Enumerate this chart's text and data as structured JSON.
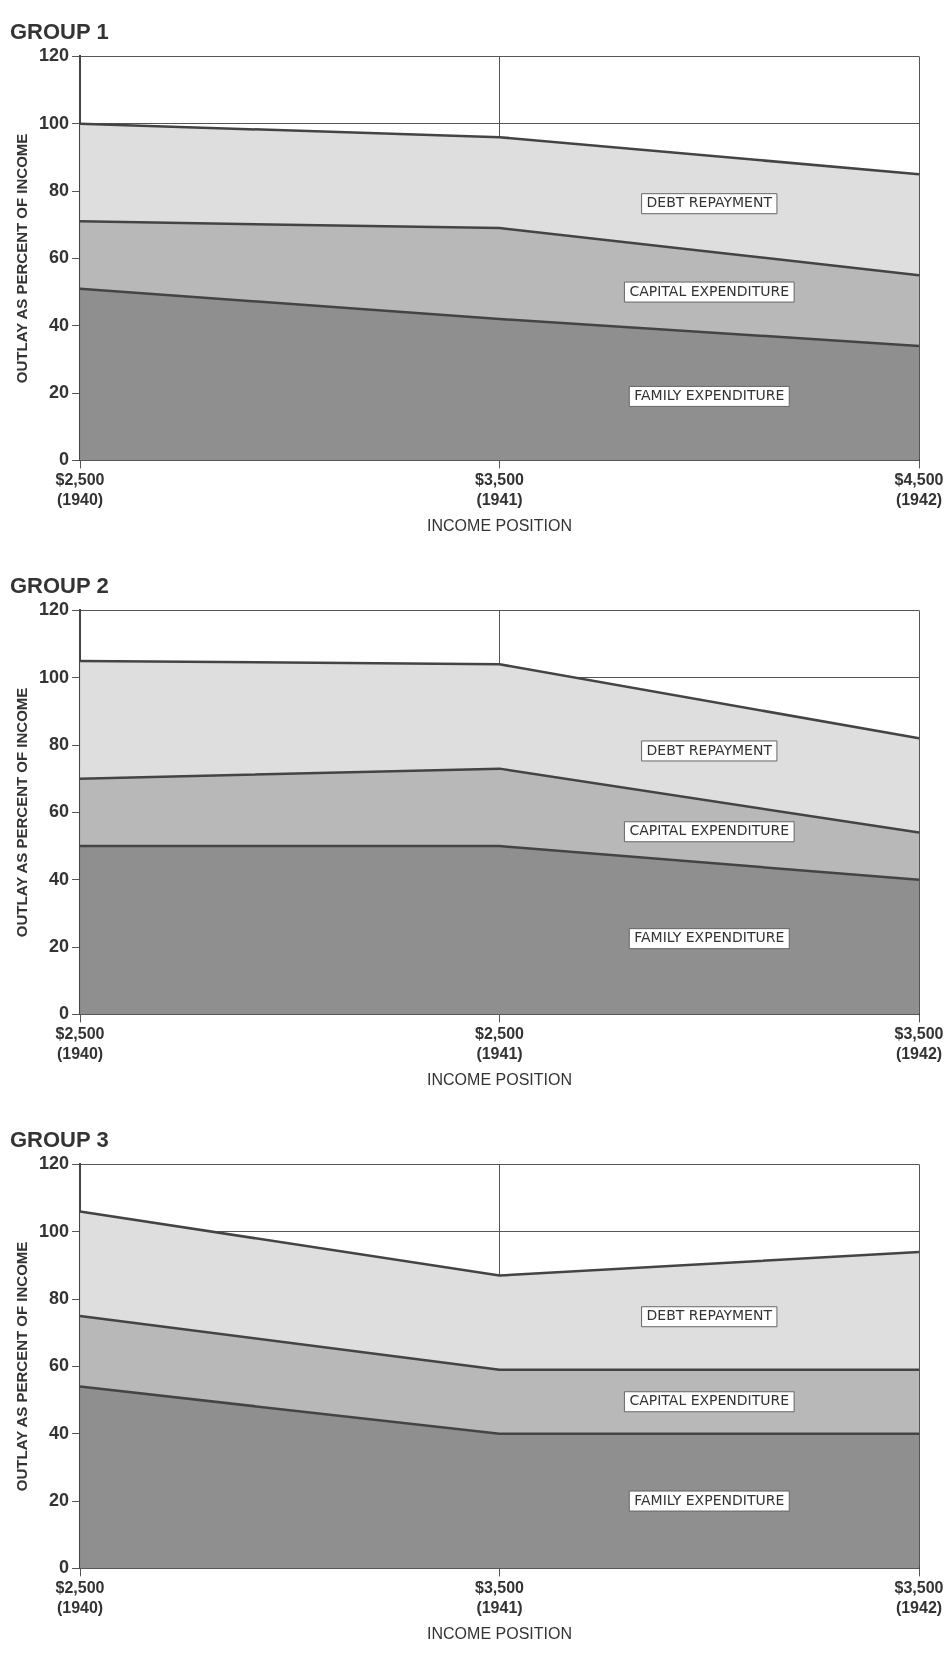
{
  "chart_data": [
    {
      "type": "area",
      "title": "GROUP 1",
      "xlabel": "INCOME POSITION",
      "ylabel": "OUTLAY AS PERCENT OF INCOME",
      "stacked": true,
      "grid": true,
      "legend": false,
      "categories": [
        "$2,500\n(1940)",
        "$3,500\n(1941)",
        "$4,500\n(1942)"
      ],
      "ylim": [
        0,
        120
      ],
      "yticks": [
        0,
        20,
        40,
        60,
        80,
        100,
        120
      ],
      "series": [
        {
          "name": "FAMILY EXPENDITURE",
          "color": "#8f8f8f",
          "values": [
            51,
            42,
            34
          ]
        },
        {
          "name": "CAPITAL EXPENDITURE",
          "color": "#b8b8b8",
          "values": [
            20,
            27,
            21
          ]
        },
        {
          "name": "DEBT REPAYMENT",
          "color": "#dedede",
          "values": [
            29,
            27,
            30
          ]
        }
      ]
    },
    {
      "type": "area",
      "title": "GROUP 2",
      "xlabel": "INCOME POSITION",
      "ylabel": "OUTLAY AS PERCENT OF INCOME",
      "stacked": true,
      "grid": true,
      "legend": false,
      "categories": [
        "$2,500\n(1940)",
        "$2,500\n(1941)",
        "$3,500\n(1942)"
      ],
      "ylim": [
        0,
        120
      ],
      "yticks": [
        0,
        20,
        40,
        60,
        80,
        100,
        120
      ],
      "series": [
        {
          "name": "FAMILY EXPENDITURE",
          "color": "#8f8f8f",
          "values": [
            50,
            50,
            40
          ]
        },
        {
          "name": "CAPITAL EXPENDITURE",
          "color": "#b8b8b8",
          "values": [
            20,
            23,
            14
          ]
        },
        {
          "name": "DEBT REPAYMENT",
          "color": "#dedede",
          "values": [
            35,
            31,
            28
          ]
        }
      ]
    },
    {
      "type": "area",
      "title": "GROUP 3",
      "xlabel": "INCOME POSITION",
      "ylabel": "OUTLAY AS PERCENT OF INCOME",
      "stacked": true,
      "grid": true,
      "legend": false,
      "categories": [
        "$2,500\n(1940)",
        "$3,500\n(1941)",
        "$3,500\n(1942)"
      ],
      "ylim": [
        0,
        120
      ],
      "yticks": [
        0,
        20,
        40,
        60,
        80,
        100,
        120
      ],
      "series": [
        {
          "name": "FAMILY EXPENDITURE",
          "color": "#8f8f8f",
          "values": [
            54,
            40,
            40
          ]
        },
        {
          "name": "CAPITAL EXPENDITURE",
          "color": "#b8b8b8",
          "values": [
            21,
            19,
            19
          ]
        },
        {
          "name": "DEBT REPAYMENT",
          "color": "#dedede",
          "values": [
            31,
            28,
            35
          ]
        }
      ]
    }
  ]
}
